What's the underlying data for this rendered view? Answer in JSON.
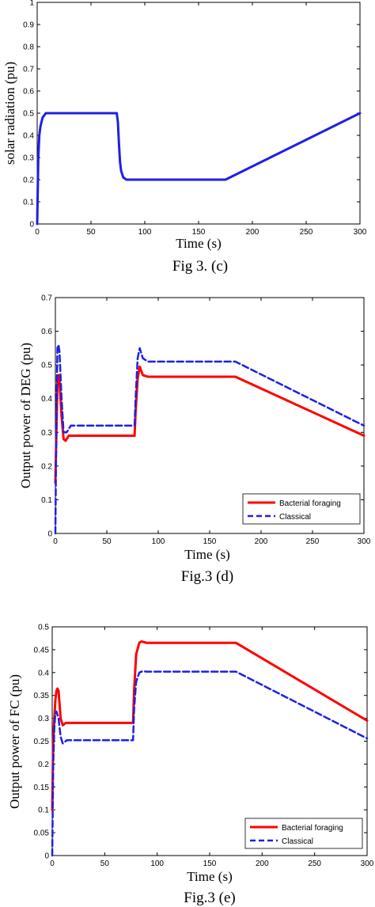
{
  "chart_data": [
    {
      "type": "line",
      "xlabel": "Time (s)",
      "ylabel": "solar radiation (pu)",
      "caption": "Fig 3. (c)",
      "xlim": [
        0,
        300
      ],
      "ylim": [
        0,
        1
      ],
      "xticks": [
        "0",
        "50",
        "100",
        "150",
        "200",
        "250",
        "300"
      ],
      "yticks": [
        "0",
        "0.1",
        "0.2",
        "0.3",
        "0.4",
        "0.5",
        "0.6",
        "0.7",
        "0.8",
        "0.9",
        "1"
      ],
      "series": [
        {
          "color": "#1f1fe6",
          "dash": "solid",
          "x": [
            0,
            1,
            2,
            3,
            5,
            8,
            12,
            74,
            75,
            76,
            77,
            78,
            80,
            83,
            90,
            175,
            300
          ],
          "y": [
            0,
            0.3,
            0.4,
            0.44,
            0.48,
            0.5,
            0.5,
            0.5,
            0.46,
            0.36,
            0.28,
            0.24,
            0.21,
            0.2,
            0.2,
            0.2,
            0.5
          ]
        }
      ]
    },
    {
      "type": "line",
      "xlabel": "Time (s)",
      "ylabel": "Output power of DEG (pu)",
      "caption": "Fig.3 (d)",
      "xlim": [
        0,
        300
      ],
      "ylim": [
        0,
        0.7
      ],
      "xticks": [
        "0",
        "50",
        "100",
        "150",
        "200",
        "250",
        "300"
      ],
      "yticks": [
        "0",
        "0.1",
        "0.2",
        "0.3",
        "0.4",
        "0.5",
        "0.6",
        "0.7"
      ],
      "legend": {
        "position": "bottom-right",
        "entries": [
          "Bacterial foraging",
          "Classical"
        ]
      },
      "series": [
        {
          "name": "Bacterial foraging",
          "color": "#ff0000",
          "dash": "solid",
          "x": [
            0,
            1,
            2,
            3,
            4,
            6,
            8,
            10,
            13,
            17,
            77,
            78,
            80,
            82,
            85,
            90,
            175,
            300
          ],
          "y": [
            0.15,
            0.3,
            0.45,
            0.47,
            0.45,
            0.35,
            0.28,
            0.275,
            0.29,
            0.29,
            0.29,
            0.36,
            0.46,
            0.495,
            0.47,
            0.465,
            0.465,
            0.29
          ]
        },
        {
          "name": "Classical",
          "color": "#1f1fe6",
          "dash": "dashed",
          "x": [
            0,
            1,
            2,
            3,
            4,
            6,
            8,
            11,
            15,
            20,
            77,
            78,
            80,
            82,
            85,
            90,
            175,
            300
          ],
          "y": [
            0,
            0.35,
            0.55,
            0.56,
            0.54,
            0.4,
            0.3,
            0.3,
            0.32,
            0.32,
            0.32,
            0.4,
            0.52,
            0.55,
            0.52,
            0.51,
            0.51,
            0.32
          ]
        }
      ]
    },
    {
      "type": "line",
      "xlabel": "Time (s)",
      "ylabel": "Output power of FC (pu)",
      "caption": "Fig.3 (e)",
      "xlim": [
        0,
        300
      ],
      "ylim": [
        0,
        0.5
      ],
      "xticks": [
        "0",
        "50",
        "100",
        "150",
        "200",
        "250",
        "300"
      ],
      "yticks": [
        "0",
        "0.05",
        "0.1",
        "0.15",
        "0.2",
        "0.25",
        "0.3",
        "0.35",
        "0.4",
        "0.45",
        "0.5"
      ],
      "legend": {
        "position": "bottom-right",
        "entries": [
          "Bacterial foraging",
          "Classical"
        ]
      },
      "series": [
        {
          "name": "Bacterial foraging",
          "color": "#ff0000",
          "dash": "solid",
          "x": [
            0,
            1,
            2,
            3,
            4,
            5,
            6,
            8,
            10,
            13,
            77,
            78,
            80,
            83,
            85,
            90,
            175,
            300
          ],
          "y": [
            0.1,
            0.25,
            0.3,
            0.34,
            0.36,
            0.365,
            0.36,
            0.3,
            0.285,
            0.29,
            0.29,
            0.36,
            0.44,
            0.465,
            0.468,
            0.465,
            0.465,
            0.295
          ]
        },
        {
          "name": "Classical",
          "color": "#1f1fe6",
          "dash": "dashed",
          "x": [
            0,
            1,
            2,
            3,
            4,
            6,
            8,
            10,
            14,
            77,
            78,
            80,
            83,
            86,
            90,
            175,
            300
          ],
          "y": [
            0,
            0.2,
            0.28,
            0.31,
            0.315,
            0.3,
            0.26,
            0.245,
            0.252,
            0.252,
            0.32,
            0.38,
            0.4,
            0.403,
            0.402,
            0.402,
            0.256
          ]
        }
      ]
    }
  ]
}
